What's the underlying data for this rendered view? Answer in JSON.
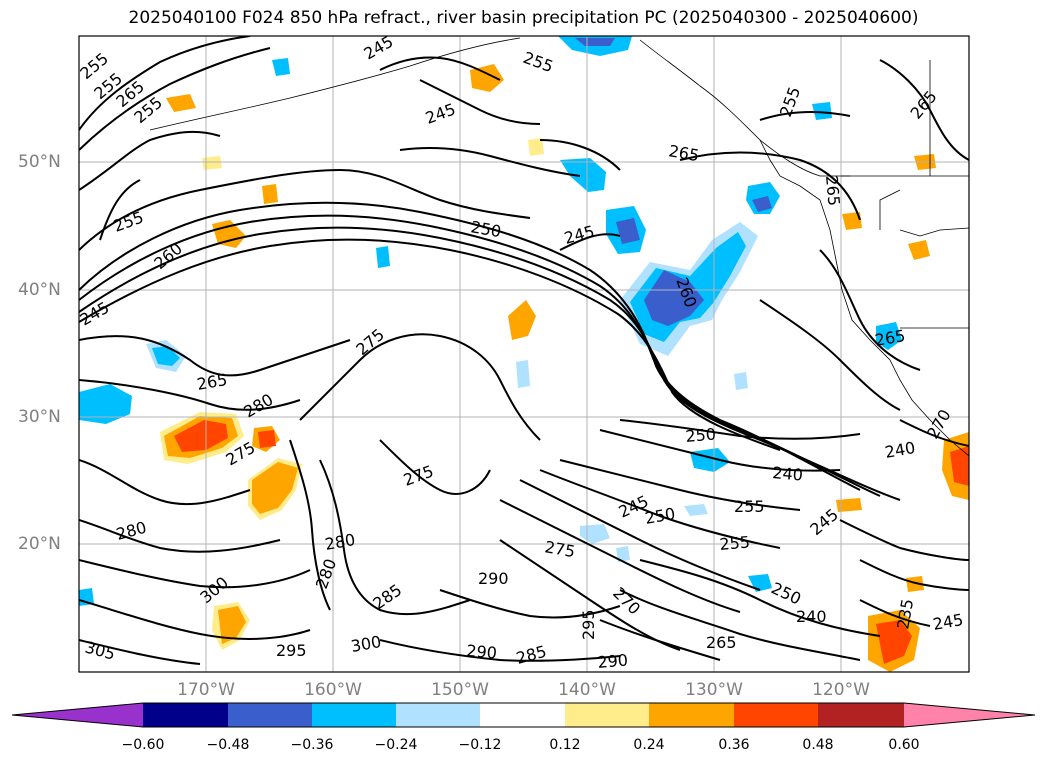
{
  "title": "2025040100 F024 850 hPa refract., river basin precipitation PC (2025040300 - 2025040600)",
  "latitude_labels": [
    "50°N",
    "40°N",
    "30°N",
    "20°N"
  ],
  "longitude_labels": [
    "170°W",
    "160°W",
    "150°W",
    "140°W",
    "130°W",
    "120°W"
  ],
  "contour_labels": [
    "255",
    "255",
    "245",
    "255",
    "265",
    "255",
    "265",
    "255",
    "260",
    "245",
    "255",
    "265",
    "265",
    "250",
    "245",
    "260",
    "245",
    "275",
    "265",
    "280",
    "275",
    "270",
    "275",
    "250",
    "240",
    "240",
    "245",
    "250",
    "255",
    "255",
    "245",
    "280",
    "280",
    "280",
    "300",
    "305",
    "285",
    "275",
    "290",
    "270",
    "250",
    "240",
    "295",
    "300",
    "290",
    "285",
    "290",
    "295",
    "265",
    "245",
    "235",
    "265"
  ],
  "colorbar": {
    "ticks": [
      "−0.60",
      "−0.48",
      "−0.36",
      "−0.24",
      "−0.12",
      "0.12",
      "0.24",
      "0.36",
      "0.48",
      "0.60"
    ],
    "colors": [
      "#9932cc",
      "#00008b",
      "#3a5fcd",
      "#00bfff",
      "#b0e2ff",
      "#ffffff",
      "#ffec8b",
      "#ffa500",
      "#ff4500",
      "#b22222",
      "#ff82ab"
    ]
  }
}
